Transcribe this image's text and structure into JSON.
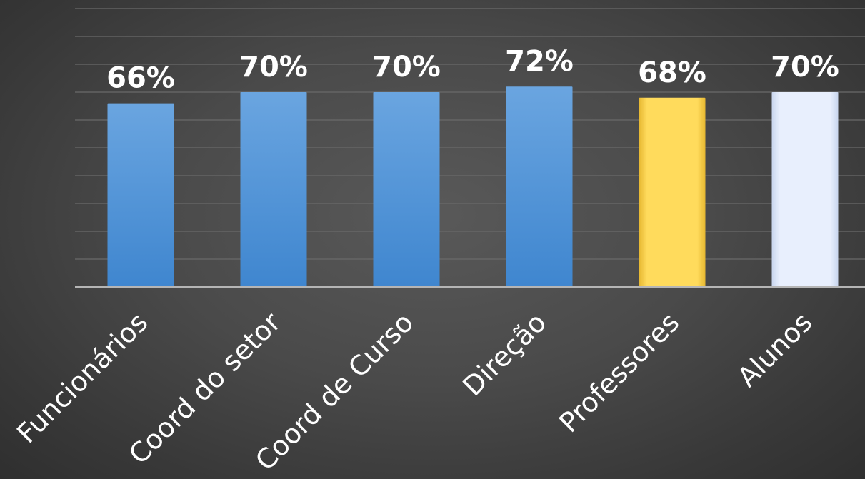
{
  "chart_data": {
    "type": "bar",
    "categories": [
      "Funcionários",
      "Coord do setor",
      "Coord de Curso",
      "Direção",
      "Professores",
      "Alunos"
    ],
    "values": [
      66,
      70,
      70,
      72,
      68,
      70
    ],
    "value_labels": [
      "66%",
      "70%",
      "70%",
      "72%",
      "68%",
      "70%"
    ],
    "bar_colors": [
      "#4a8fd6",
      "#4a8fd6",
      "#4a8fd6",
      "#4a8fd6",
      "#ffd84a",
      "#e6eefc"
    ],
    "title": "",
    "xlabel": "",
    "ylabel": "",
    "ylim": [
      0,
      100
    ],
    "grid": true,
    "legend": "none",
    "background_color": "#454545",
    "gridline_color": "#6a6a6a",
    "axis_color": "#b5b5b5"
  }
}
